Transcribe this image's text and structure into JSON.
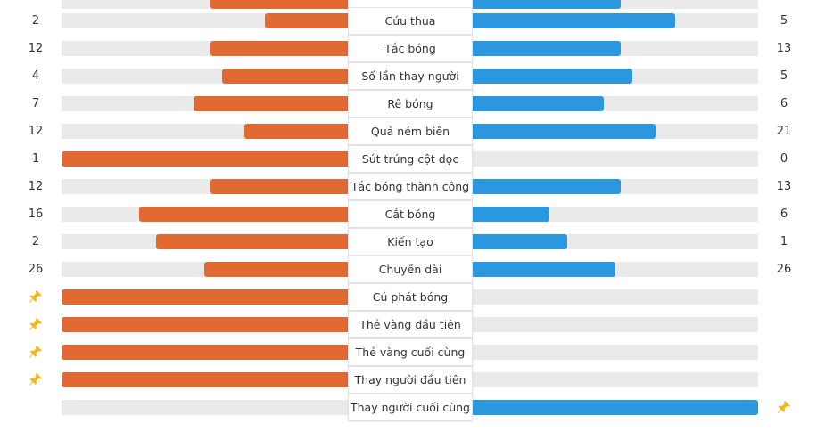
{
  "colors": {
    "home_bar": "#e06a32",
    "away_bar": "#2a97df",
    "track": "#eaeaea",
    "pin": "#f3b61a"
  },
  "top_partial_row": {
    "home_share": 0.48,
    "away_share": 0.52
  },
  "stats": [
    {
      "label": "Cứu thua",
      "home": "2",
      "away": "5",
      "home_share": 0.29,
      "away_share": 0.71
    },
    {
      "label": "Tắc bóng",
      "home": "12",
      "away": "13",
      "home_share": 0.48,
      "away_share": 0.52
    },
    {
      "label": "Số lần thay người",
      "home": "4",
      "away": "5",
      "home_share": 0.44,
      "away_share": 0.56
    },
    {
      "label": "Rê bóng",
      "home": "7",
      "away": "6",
      "home_share": 0.54,
      "away_share": 0.46
    },
    {
      "label": "Quả ném biên",
      "home": "12",
      "away": "21",
      "home_share": 0.36,
      "away_share": 0.64
    },
    {
      "label": "Sút trúng cột dọc",
      "home": "1",
      "away": "0",
      "home_share": 1.0,
      "away_share": 0.0
    },
    {
      "label": "Tắc bóng thành công",
      "home": "12",
      "away": "13",
      "home_share": 0.48,
      "away_share": 0.52
    },
    {
      "label": "Cắt bóng",
      "home": "16",
      "away": "6",
      "home_share": 0.73,
      "away_share": 0.27
    },
    {
      "label": "Kiến tạo",
      "home": "2",
      "away": "1",
      "home_share": 0.67,
      "away_share": 0.33
    },
    {
      "label": "Chuyền dài",
      "home": "26",
      "away": "26",
      "home_share": 0.5,
      "away_share": 0.5
    },
    {
      "label": "Cú phát bóng",
      "home_icon": "pin-icon",
      "home_share": 1.0,
      "away_share": 0.0
    },
    {
      "label": "Thẻ vàng đầu tiên",
      "home_icon": "pin-icon",
      "home_share": 1.0,
      "away_share": 0.0
    },
    {
      "label": "Thẻ vàng cuối cùng",
      "home_icon": "pin-icon",
      "home_share": 1.0,
      "away_share": 0.0
    },
    {
      "label": "Thay người đầu tiên",
      "home_icon": "pin-icon",
      "home_share": 1.0,
      "away_share": 0.0
    },
    {
      "label": "Thay người cuối cùng",
      "away_icon": "pin-icon",
      "home_share": 0.0,
      "away_share": 1.0
    }
  ]
}
